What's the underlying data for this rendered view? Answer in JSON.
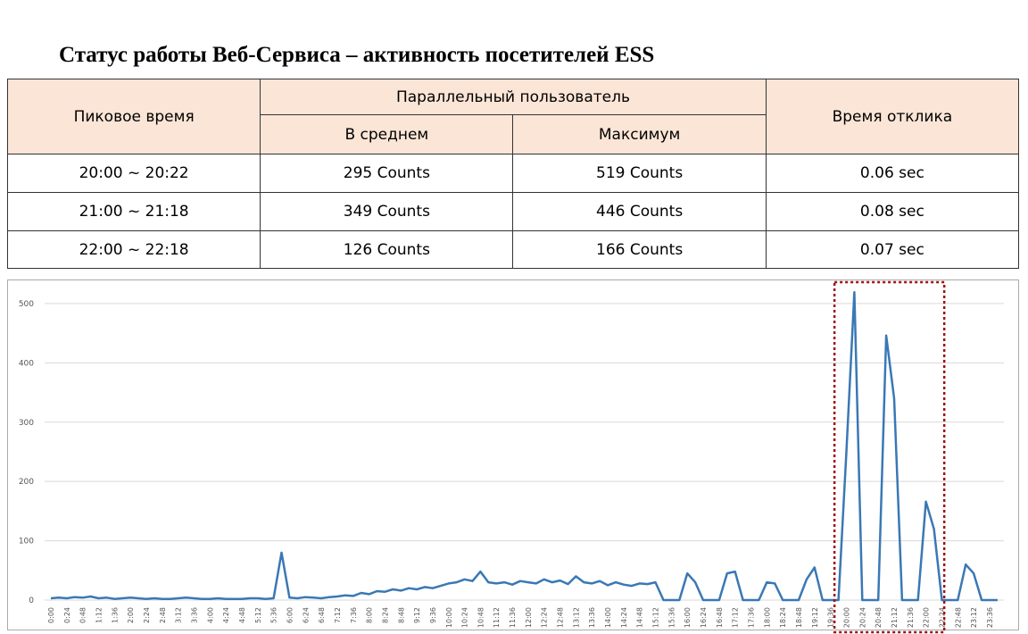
{
  "title": "Статус работы Веб-Сервиса – активность посетителей ESS",
  "table": {
    "header": {
      "peak": "Пиковое время",
      "parallel": "Параллельный пользователь",
      "avg": "В среднем",
      "max": "Максимум",
      "response": "Время отклика"
    },
    "rows": [
      [
        "20:00 ~ 20:22",
        "295 Counts",
        "519 Counts",
        "0.06 sec"
      ],
      [
        "21:00 ~ 21:18",
        "349 Counts",
        "446 Counts",
        "0.08 sec"
      ],
      [
        "22:00 ~ 22:18",
        "126 Counts",
        "166 Counts",
        "0.07 sec"
      ]
    ]
  },
  "chart_data": {
    "type": "line",
    "color": "#3a78b5",
    "grid": true,
    "ylim": [
      0,
      530
    ],
    "yticks": [
      0,
      100,
      200,
      300,
      400,
      500
    ],
    "categories": [
      "0:00",
      null,
      "0:24",
      null,
      "0:48",
      null,
      "1:12",
      null,
      "1:36",
      null,
      "2:00",
      null,
      "2:24",
      null,
      "2:48",
      null,
      "3:12",
      null,
      "3:36",
      null,
      "4:00",
      null,
      "4:24",
      null,
      "4:48",
      null,
      "5:12",
      null,
      "5:36",
      null,
      "6:00",
      null,
      "6:24",
      null,
      "6:48",
      null,
      "7:12",
      null,
      "7:36",
      null,
      "8:00",
      null,
      "8:24",
      null,
      "8:48",
      null,
      "9:12",
      null,
      "9:36",
      null,
      "10:00",
      null,
      "10:24",
      null,
      "10:48",
      null,
      "11:12",
      null,
      "11:36",
      null,
      "12:00",
      null,
      "12:24",
      null,
      "12:48",
      null,
      "13:12",
      null,
      "13:36",
      null,
      "14:00",
      null,
      "14:24",
      null,
      "14:48",
      null,
      "15:12",
      null,
      "15:36",
      null,
      "16:00",
      null,
      "16:24",
      null,
      "16:48",
      null,
      "17:12",
      null,
      "17:36",
      null,
      "18:00",
      null,
      "18:24",
      null,
      "18:48",
      null,
      "19:12",
      null,
      "19:36",
      null,
      "20:00",
      null,
      "20:24",
      null,
      "20:48",
      null,
      "21:12",
      null,
      "21:36",
      null,
      "22:00",
      null,
      "22:24",
      null,
      "22:48",
      null,
      "23:12",
      null,
      "23:36",
      null
    ],
    "values": [
      3,
      4,
      3,
      5,
      4,
      6,
      3,
      4,
      2,
      3,
      4,
      3,
      2,
      3,
      2,
      2,
      3,
      4,
      3,
      2,
      2,
      3,
      2,
      2,
      2,
      3,
      3,
      2,
      3,
      80,
      4,
      3,
      5,
      4,
      3,
      5,
      6,
      8,
      7,
      12,
      10,
      15,
      14,
      18,
      16,
      20,
      18,
      22,
      20,
      24,
      28,
      30,
      35,
      32,
      48,
      30,
      28,
      30,
      26,
      32,
      30,
      28,
      35,
      30,
      33,
      27,
      40,
      30,
      28,
      32,
      25,
      30,
      26,
      24,
      28,
      27,
      30,
      0,
      0,
      0,
      45,
      30,
      0,
      0,
      0,
      45,
      48,
      0,
      0,
      0,
      30,
      28,
      0,
      0,
      0,
      35,
      55,
      0,
      0,
      0,
      250,
      519,
      0,
      0,
      0,
      446,
      340,
      0,
      0,
      0,
      166,
      120,
      0,
      0,
      0,
      60,
      45,
      0,
      0,
      0
    ]
  }
}
